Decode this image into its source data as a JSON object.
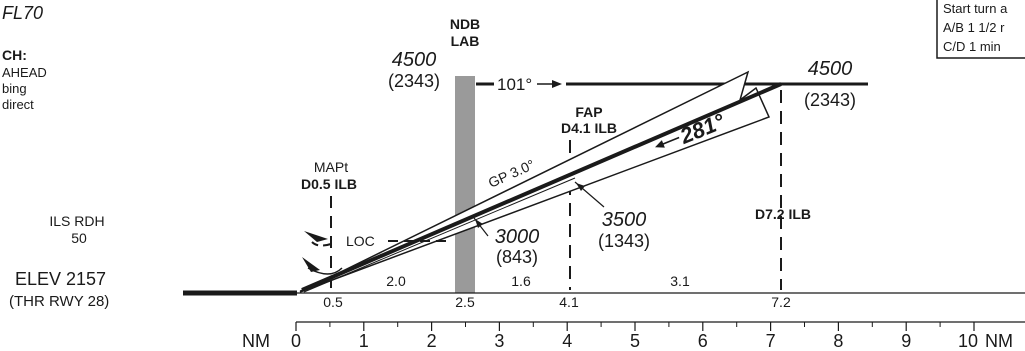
{
  "top_left": {
    "fl": "FL70",
    "ch": "CH:",
    "lines": [
      "AHEAD",
      "bing",
      "direct"
    ]
  },
  "top_right": {
    "lines": [
      "Start turn a",
      "A/B 1 1/2 r",
      "C/D 1 min"
    ]
  },
  "ndb": {
    "line1": "NDB",
    "line2": "LAB"
  },
  "alt_left": {
    "alt": "4500",
    "height": "(2343)"
  },
  "alt_right": {
    "alt": "4500",
    "height": "(2343)"
  },
  "inbound_course": "101°",
  "final_course": "281°",
  "fap": {
    "label": "FAP",
    "fix": "D4.1 ILB"
  },
  "mapt": {
    "label": "MAPt",
    "fix": "D0.5 ILB"
  },
  "d72_fix": "D7.2 ILB",
  "gp": "GP 3.0°",
  "loc": "LOC",
  "alt_3500": {
    "alt": "3500",
    "height": "(1343)"
  },
  "alt_3000": {
    "alt": "3000",
    "height": "(843)"
  },
  "ils_rdh": {
    "label": "ILS RDH",
    "value": "50"
  },
  "elev": "ELEV 2157",
  "thr": "(THR RWY 28)",
  "segment_distances": [
    "2.0",
    "1.6",
    "3.1"
  ],
  "fix_distances": [
    "0.5",
    "2.5",
    "4.1",
    "7.2"
  ],
  "scale": {
    "unit": "NM",
    "ticks": [
      "0",
      "1",
      "2",
      "3",
      "4",
      "5",
      "6",
      "7",
      "8",
      "9",
      "10"
    ]
  }
}
